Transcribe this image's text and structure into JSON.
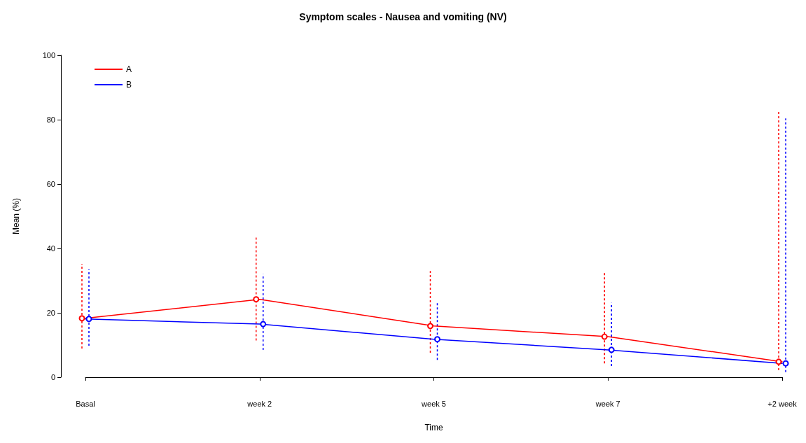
{
  "chart_data": {
    "type": "line",
    "title": "Symptom scales - Nausea and vomiting (NV)",
    "xlabel": "Time",
    "ylabel": "Mean (%)",
    "categories": [
      "Basal",
      "week 2",
      "week 5",
      "week 7",
      "+2 week"
    ],
    "series": [
      {
        "name": "A",
        "color": "#ff0000",
        "values": [
          18.3,
          24.2,
          15.9,
          12.6,
          4.8
        ],
        "errors": [
          [
            8.9,
            35.2
          ],
          [
            11.4,
            43.9
          ],
          [
            7.6,
            33
          ],
          [
            4.3,
            33
          ],
          [
            2.2,
            83
          ]
        ]
      },
      {
        "name": "B",
        "color": "#0000ff",
        "values": [
          18.1,
          16.5,
          11.8,
          8.5,
          4.3
        ],
        "errors": [
          [
            9.8,
            33.5
          ],
          [
            8.5,
            32
          ],
          [
            5.4,
            23.5
          ],
          [
            3.5,
            23.1
          ],
          [
            1.6,
            80.4
          ]
        ]
      }
    ],
    "ylim": [
      0,
      100
    ],
    "yticks": [
      0,
      20,
      40,
      60,
      80,
      100
    ],
    "grid": false,
    "legend": "top left",
    "marker": "circle",
    "line_style": "solid"
  }
}
